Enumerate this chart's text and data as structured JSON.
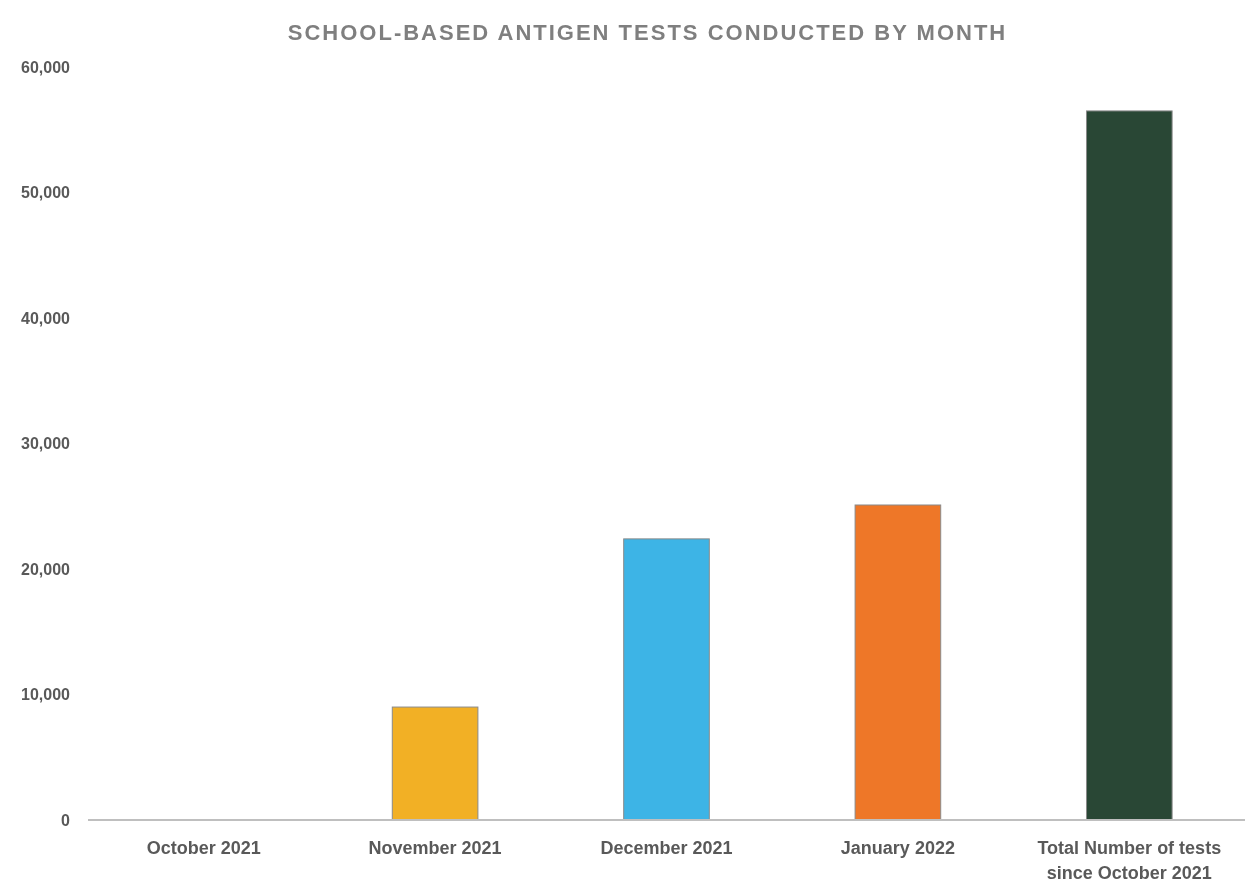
{
  "chart_data": {
    "type": "bar",
    "title": "SCHOOL-BASED ANTIGEN TESTS CONDUCTED BY MONTH",
    "categories": [
      "October 2021",
      "November 2021",
      "December 2021",
      "January 2022",
      "Total Number of tests\nsince October 2021"
    ],
    "values": [
      0,
      9000,
      22400,
      25100,
      56500
    ],
    "colors": [
      "#f2b025",
      "#f2b025",
      "#3db4e6",
      "#ee7728",
      "#294735"
    ],
    "ylim": [
      0,
      60000
    ],
    "yticks": [
      {
        "value": 0,
        "label": "0"
      },
      {
        "value": 10000,
        "label": "10,000"
      },
      {
        "value": 20000,
        "label": "20,000"
      },
      {
        "value": 30000,
        "label": "30,000"
      },
      {
        "value": 40000,
        "label": "40,000"
      },
      {
        "value": 50000,
        "label": "50,000"
      },
      {
        "value": 60000,
        "label": "60,000"
      }
    ],
    "grid": false
  }
}
